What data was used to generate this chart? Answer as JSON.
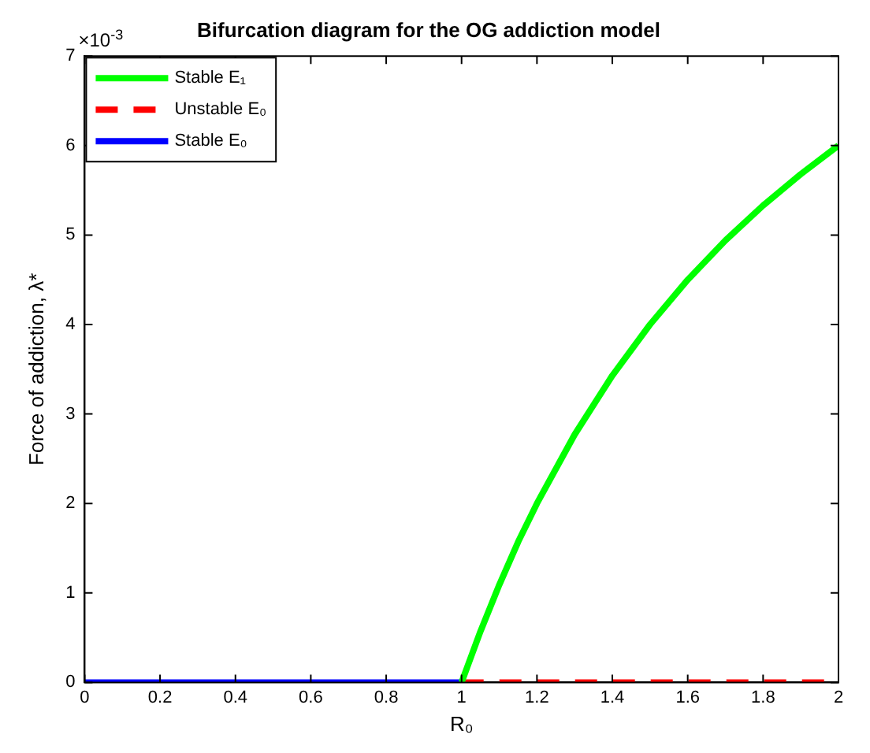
{
  "chart_data": {
    "type": "line",
    "title": "Bifurcation diagram for the OG addiction model",
    "xlabel": "R₀",
    "ylabel": "Force of addiction, λ*",
    "annotations": [
      "×10$^{-3}$"
    ],
    "xlim": [
      0,
      2
    ],
    "xticks": [
      0,
      0.2,
      0.4,
      0.6,
      0.8,
      1,
      1.2,
      1.4,
      1.6,
      1.8,
      2
    ],
    "ylim": [
      0,
      7
    ],
    "yticks": [
      0,
      1,
      2,
      3,
      4,
      5,
      6,
      7
    ],
    "grid": false,
    "legend": "top left",
    "marker": "none",
    "series": [
      {
        "name": "Stable E₁",
        "color": "#00ff00",
        "line_style": "solid",
        "x": [
          1,
          1.05,
          1.1,
          1.15,
          1.2,
          1.3,
          1.4,
          1.5,
          1.6,
          1.7,
          1.8,
          1.9,
          2
        ],
        "values": [
          0,
          0.57,
          1.09,
          1.57,
          2,
          2.77,
          3.43,
          4,
          4.5,
          4.94,
          5.33,
          5.68,
          6
        ]
      },
      {
        "name": "Unstable E₀",
        "color": "#ff0000",
        "line_style": "dashed",
        "x": [
          1,
          2
        ],
        "values": [
          0,
          0
        ]
      },
      {
        "name": "Stable E₀",
        "color": "#0000ff",
        "line_style": "solid",
        "x": [
          0,
          1
        ],
        "values": [
          0,
          0
        ]
      }
    ]
  }
}
